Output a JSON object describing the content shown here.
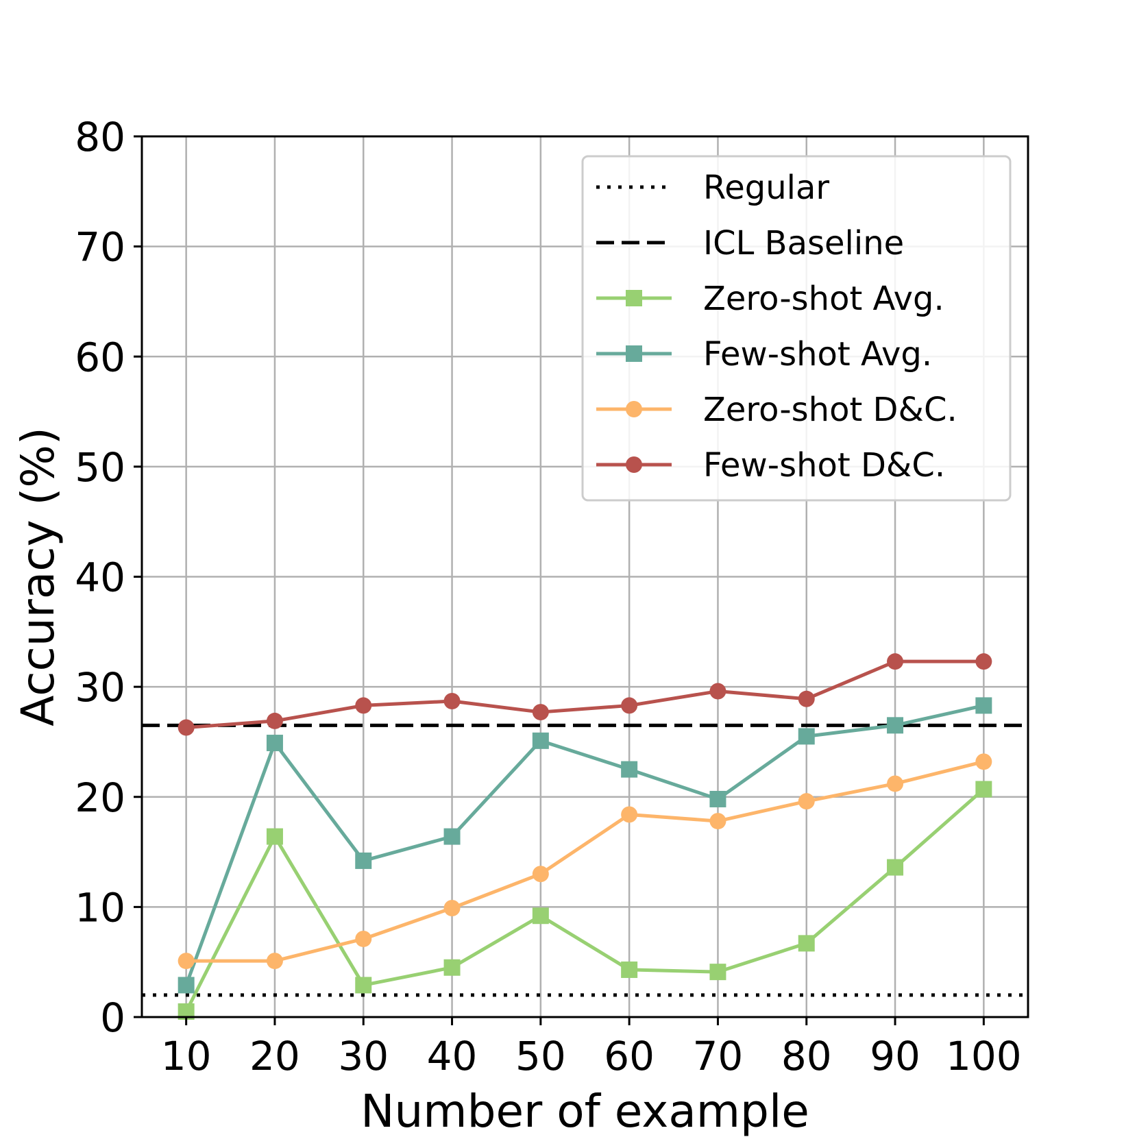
{
  "chart_data": {
    "type": "line",
    "xlabel": "Number of example",
    "ylabel": "Accuracy (%)",
    "x": [
      10,
      20,
      30,
      40,
      50,
      60,
      70,
      80,
      90,
      100
    ],
    "xticks": [
      "10",
      "20",
      "30",
      "40",
      "50",
      "60",
      "70",
      "80",
      "90",
      "100"
    ],
    "xlim": [
      5,
      105
    ],
    "ylim": [
      0,
      80
    ],
    "yticks": [
      "0",
      "10",
      "20",
      "30",
      "40",
      "50",
      "60",
      "70",
      "80"
    ],
    "grid": true,
    "legend_position": "top-right",
    "reference_lines": [
      {
        "name": "Regular",
        "value": 2.0,
        "style": "dotted",
        "color": "#000000"
      },
      {
        "name": "ICL Baseline",
        "value": 26.5,
        "style": "dashed",
        "color": "#000000"
      }
    ],
    "series": [
      {
        "name": "Zero-shot Avg.",
        "marker": "square",
        "color": "#98d072",
        "values": [
          0.5,
          16.4,
          2.9,
          4.5,
          9.2,
          4.3,
          4.1,
          6.7,
          13.6,
          20.7
        ]
      },
      {
        "name": "Few-shot Avg.",
        "marker": "square",
        "color": "#67aa9b",
        "values": [
          2.9,
          24.9,
          14.2,
          16.4,
          25.1,
          22.5,
          19.8,
          25.5,
          26.5,
          28.3
        ]
      },
      {
        "name": "Zero-shot D&C.",
        "marker": "circle",
        "color": "#fdb56a",
        "values": [
          5.1,
          5.1,
          7.1,
          9.9,
          13.0,
          18.4,
          17.8,
          19.6,
          21.2,
          23.2
        ]
      },
      {
        "name": "Few-shot D&C.",
        "marker": "circle",
        "color": "#b8524d",
        "values": [
          26.3,
          26.9,
          28.3,
          28.7,
          27.7,
          28.3,
          29.6,
          28.9,
          32.3,
          32.3
        ]
      }
    ]
  }
}
